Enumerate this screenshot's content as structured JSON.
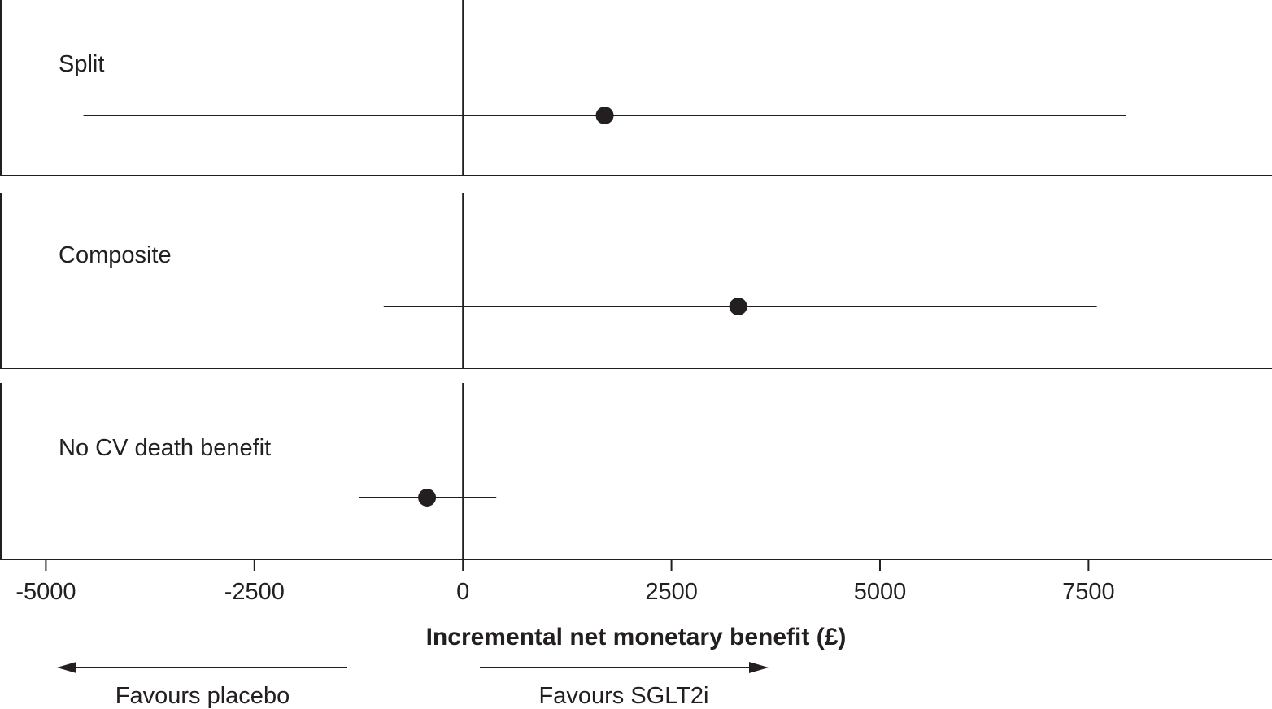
{
  "chart_data": {
    "type": "forest",
    "xlabel": "Incremental net monetary benefit (£)",
    "xlim": [
      -5550,
      9700
    ],
    "xticks": [
      -5000,
      -2500,
      0,
      2500,
      5000,
      7500
    ],
    "xtick_labels": [
      "-5000",
      "-2500",
      "0",
      "2500",
      "5000",
      "7500"
    ],
    "reference_line": 0,
    "panels": [
      {
        "label": "Split",
        "estimate": 1700,
        "ci": [
          -4550,
          7950
        ]
      },
      {
        "label": "Composite",
        "estimate": 3300,
        "ci": [
          -950,
          7600
        ]
      },
      {
        "label": "No CV death benefit",
        "estimate": -430,
        "ci": [
          -1250,
          400
        ]
      }
    ],
    "direction_labels": {
      "left": "Favours placebo",
      "right": "Favours SGLT2i"
    }
  }
}
